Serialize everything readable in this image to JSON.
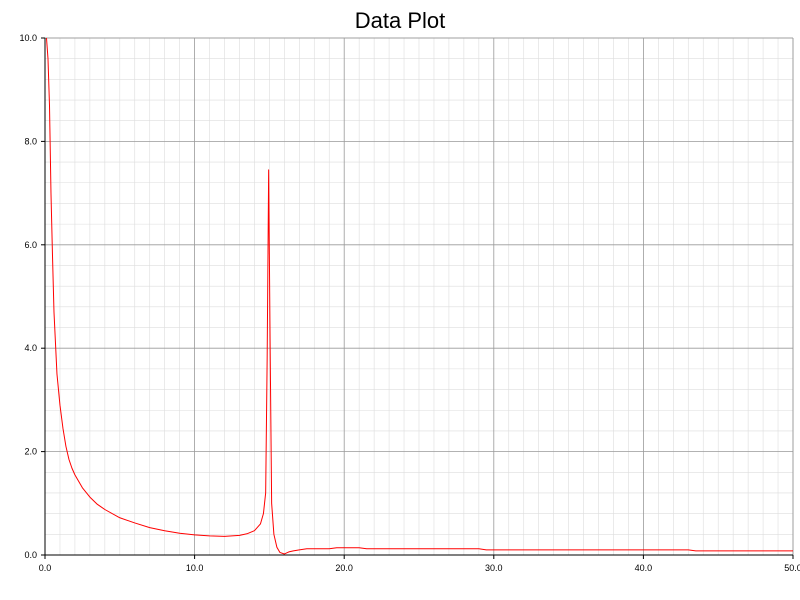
{
  "chart_data": {
    "type": "line",
    "title": "Data Plot",
    "xlabel": "",
    "ylabel": "",
    "xlim": [
      0,
      50
    ],
    "ylim": [
      0,
      10
    ],
    "x_ticks": [
      "0.0",
      "10.0",
      "20.0",
      "30.0",
      "40.0",
      "50.0"
    ],
    "y_ticks": [
      "0.0",
      "2.0",
      "4.0",
      "6.0",
      "8.0",
      "10.0"
    ],
    "grid": true,
    "line_color": "#ff0000",
    "series": [
      {
        "x": [
          0.1,
          0.2,
          0.3,
          0.4,
          0.5,
          0.6,
          0.8,
          1.0,
          1.2,
          1.4,
          1.6,
          1.8,
          2.0,
          2.5,
          3.0,
          3.5,
          4.0,
          5.0,
          6.0,
          7.0,
          8.0,
          9.0,
          10.0,
          11.0,
          12.0,
          13.0,
          13.5,
          14.0,
          14.4,
          14.6,
          14.75,
          14.85,
          14.95,
          15.05,
          15.15,
          15.3,
          15.5,
          15.7,
          16.0,
          16.3,
          16.6,
          17.0,
          17.5,
          18.0,
          19.0,
          19.5,
          21.0,
          21.5,
          25.0,
          29.0,
          29.5,
          35.0,
          40.0,
          43.0,
          43.5,
          50.0
        ],
        "y": [
          10.0,
          9.6,
          8.7,
          7.0,
          5.8,
          4.7,
          3.5,
          2.9,
          2.45,
          2.1,
          1.85,
          1.68,
          1.55,
          1.3,
          1.12,
          0.98,
          0.88,
          0.72,
          0.62,
          0.53,
          0.47,
          0.42,
          0.39,
          0.37,
          0.36,
          0.38,
          0.41,
          0.47,
          0.6,
          0.8,
          1.2,
          3.8,
          7.45,
          4.0,
          1.0,
          0.4,
          0.15,
          0.05,
          0.02,
          0.06,
          0.08,
          0.1,
          0.12,
          0.12,
          0.12,
          0.14,
          0.14,
          0.12,
          0.12,
          0.12,
          0.1,
          0.1,
          0.1,
          0.1,
          0.08,
          0.08
        ]
      }
    ]
  }
}
